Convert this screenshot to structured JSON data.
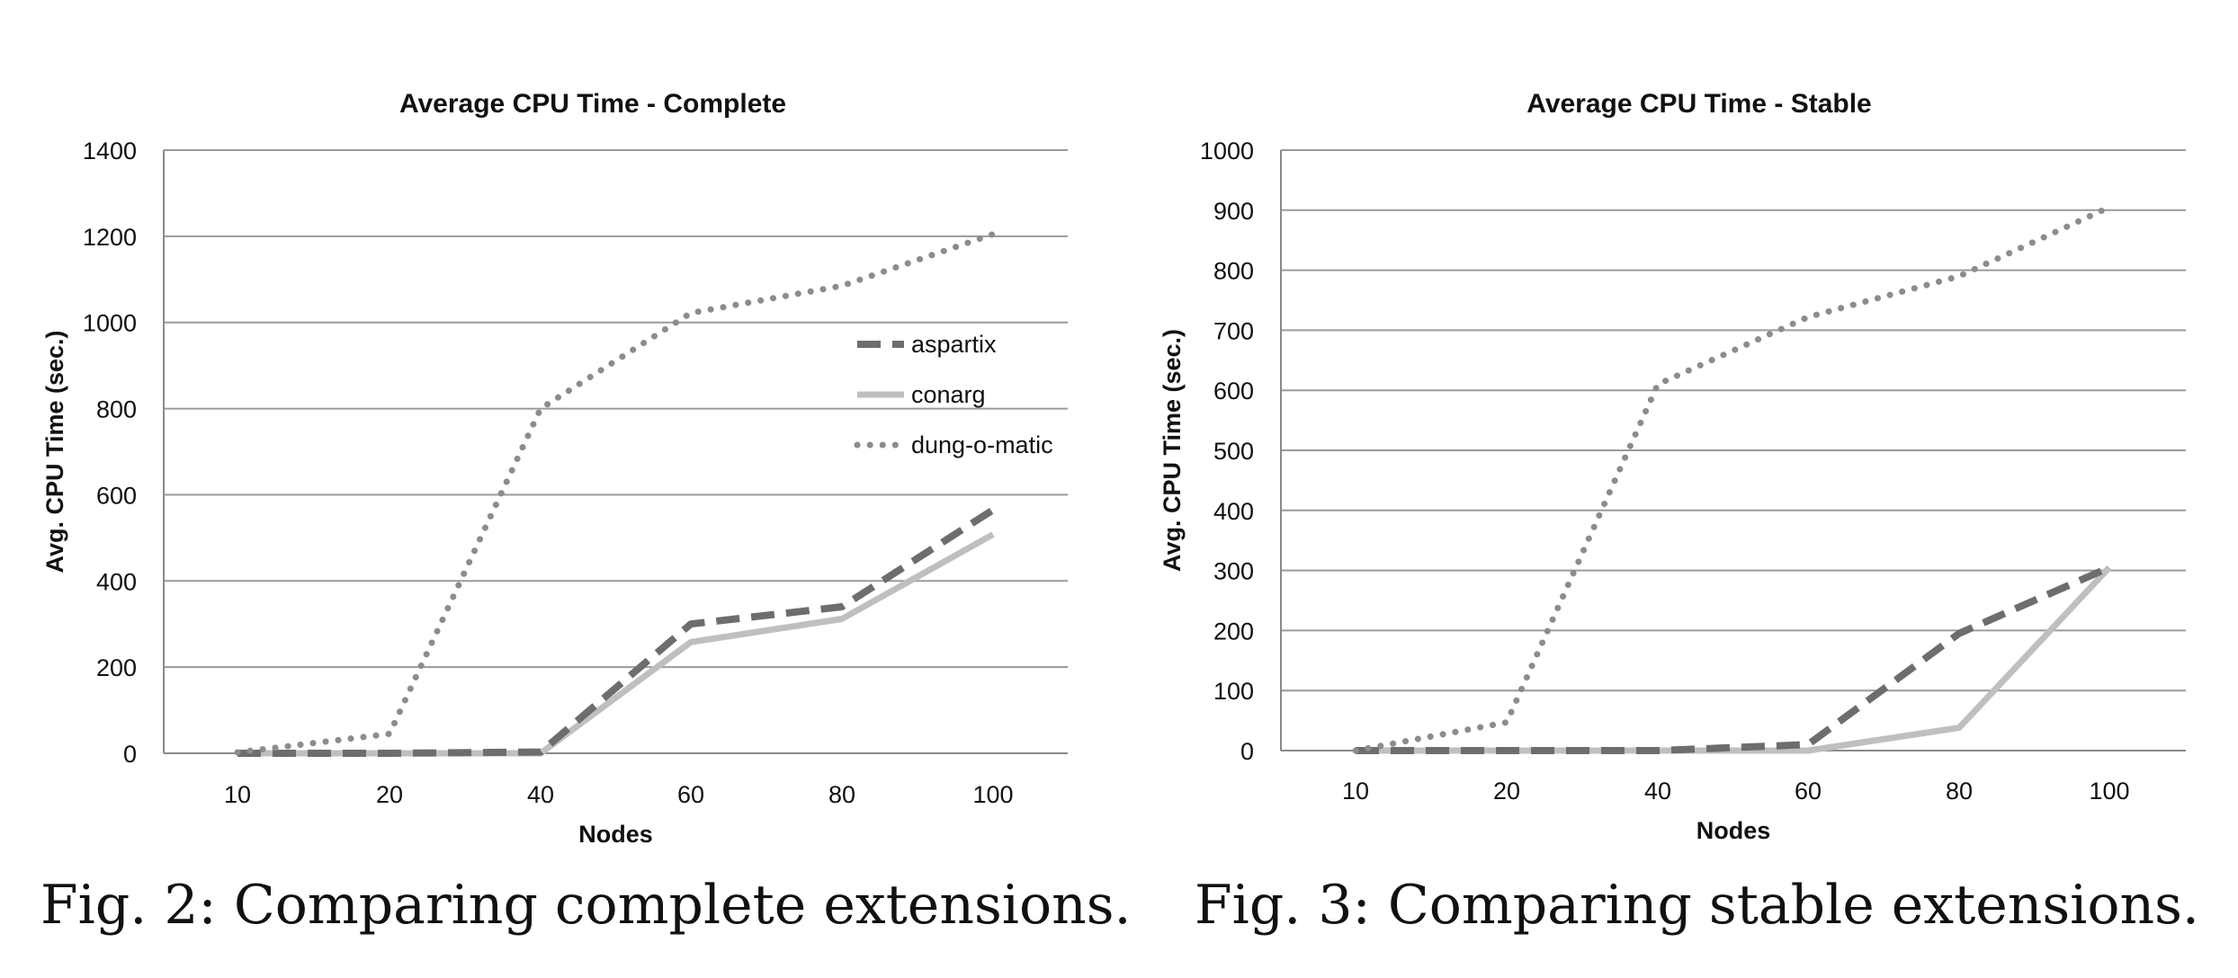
{
  "chart_data": [
    {
      "type": "line",
      "title": "Average CPU Time - Complete",
      "xlabel": "Nodes",
      "ylabel": "Avg. CPU Time (sec.)",
      "categories": [
        "10",
        "20",
        "40",
        "60",
        "80",
        "100"
      ],
      "ylim": [
        0,
        1400
      ],
      "yticks": [
        0,
        200,
        400,
        600,
        800,
        1000,
        1200,
        1400
      ],
      "grid": true,
      "legend_position": "right",
      "caption": "Fig. 2: Comparing complete extensions.",
      "series": [
        {
          "name": "aspartix",
          "values": [
            0,
            0,
            3,
            300,
            340,
            565
          ],
          "color": "#6d6d6d",
          "style": "dashed"
        },
        {
          "name": "conarg",
          "values": [
            0,
            0,
            0,
            258,
            312,
            508
          ],
          "color": "#bfbfbf",
          "style": "solid"
        },
        {
          "name": "dung-o-matic",
          "values": [
            2,
            45,
            800,
            1022,
            1085,
            1205
          ],
          "color": "#8c8c8c",
          "style": "dotted"
        }
      ]
    },
    {
      "type": "line",
      "title": "Average CPU Time - Stable",
      "xlabel": "Nodes",
      "ylabel": "Avg. CPU Time (sec.)",
      "categories": [
        "10",
        "20",
        "40",
        "60",
        "80",
        "100"
      ],
      "ylim": [
        0,
        1000
      ],
      "yticks": [
        0,
        100,
        200,
        300,
        400,
        500,
        600,
        700,
        800,
        900,
        1000
      ],
      "grid": true,
      "legend_position": "none",
      "caption": "Fig. 3: Comparing stable extensions.",
      "series": [
        {
          "values": [
            0,
            0,
            0,
            10,
            195,
            305
          ],
          "color": "#6d6d6d",
          "style": "dashed"
        },
        {
          "values": [
            0,
            0,
            0,
            0,
            38,
            305
          ],
          "color": "#bfbfbf",
          "style": "solid"
        },
        {
          "values": [
            0,
            47,
            610,
            722,
            790,
            905
          ],
          "color": "#8c8c8c",
          "style": "dotted"
        }
      ]
    }
  ]
}
